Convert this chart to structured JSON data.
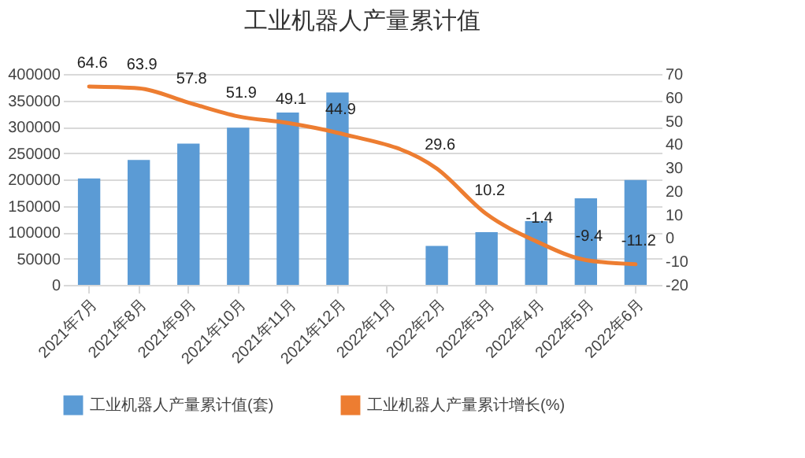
{
  "chart_data": {
    "type": "bar",
    "title": "工业机器人产量累计值",
    "categories": [
      "2021年7月",
      "2021年8月",
      "2021年9月",
      "2021年10月",
      "2021年11月",
      "2021年12月",
      "2022年1月",
      "2022年2月",
      "2022年3月",
      "2022年4月",
      "2022年5月",
      "2022年6月"
    ],
    "series": [
      {
        "name": "工业机器人产量累计值(套)",
        "color": "#5b9bd5",
        "values": [
          202000,
          237000,
          268000,
          298000,
          327000,
          365000,
          null,
          74000,
          100000,
          121000,
          164000,
          199000
        ]
      },
      {
        "name": "工业机器人产量累计增长(%)",
        "type": "line",
        "axis": "y2",
        "color": "#ed7d31",
        "values": [
          64.6,
          63.9,
          57.8,
          51.9,
          49.1,
          44.9,
          null,
          29.6,
          10.2,
          -1.4,
          -9.4,
          -11.2
        ],
        "value_labels": [
          "64.6",
          "63.9",
          "57.8",
          "51.9",
          "49.1",
          "44.9",
          null,
          "29.6",
          "10.2",
          "-1.4",
          "-9.4",
          "-11.2"
        ]
      }
    ],
    "ylim": [
      0,
      400000
    ],
    "yticks": [
      0,
      50000,
      100000,
      150000,
      200000,
      250000,
      300000,
      350000,
      400000
    ],
    "y2lim": [
      -20,
      70
    ],
    "y2ticks": [
      -20,
      -10,
      0,
      10,
      20,
      30,
      40,
      50,
      60,
      70
    ],
    "grid": "y",
    "legend": "bottom"
  }
}
